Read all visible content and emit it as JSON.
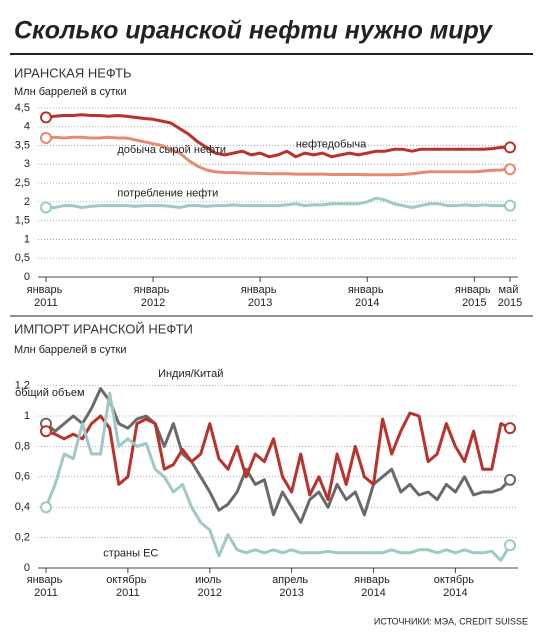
{
  "title": "Сколько иранской нефти нужно миру",
  "source": "ИСТОЧНИКИ: МЭА, CREDIT SUISSE",
  "chart_data": [
    {
      "type": "line",
      "title": "ИРАНСКАЯ НЕФТЬ",
      "y_label": "Млн баррелей в сутки",
      "x": [
        "2011-01",
        "2011-02",
        "2011-03",
        "2011-04",
        "2011-05",
        "2011-06",
        "2011-07",
        "2011-08",
        "2011-09",
        "2011-10",
        "2011-11",
        "2011-12",
        "2012-01",
        "2012-02",
        "2012-03",
        "2012-04",
        "2012-05",
        "2012-06",
        "2012-07",
        "2012-08",
        "2012-09",
        "2012-10",
        "2012-11",
        "2012-12",
        "2013-01",
        "2013-02",
        "2013-03",
        "2013-04",
        "2013-05",
        "2013-06",
        "2013-07",
        "2013-08",
        "2013-09",
        "2013-10",
        "2013-11",
        "2013-12",
        "2014-01",
        "2014-02",
        "2014-03",
        "2014-04",
        "2014-05",
        "2014-06",
        "2014-07",
        "2014-08",
        "2014-09",
        "2014-10",
        "2014-11",
        "2014-12",
        "2015-01",
        "2015-02",
        "2015-03",
        "2015-04",
        "2015-05"
      ],
      "xticks": [
        {
          "value": "2011-01",
          "label": "январь 2011"
        },
        {
          "value": "2012-01",
          "label": "январь 2012"
        },
        {
          "value": "2013-01",
          "label": "январь 2013"
        },
        {
          "value": "2014-01",
          "label": "январь 2014"
        },
        {
          "value": "2015-01",
          "label": "январь 2015"
        },
        {
          "value": "2015-05",
          "label": "май 2015"
        }
      ],
      "ylim": [
        0,
        4.5
      ],
      "yticks": [
        0,
        {
          "value": 0.5,
          "label": "0,5"
        },
        1,
        {
          "value": 1.5,
          "label": "1,5"
        },
        2,
        {
          "value": 2.5,
          "label": "2,5"
        },
        3,
        {
          "value": 3.5,
          "label": "3,5"
        },
        4,
        {
          "value": 4.5,
          "label": "4,5"
        }
      ],
      "grid": true,
      "series": [
        {
          "name": "нефтедобыча",
          "color": "#b8332c",
          "values": [
            4.25,
            4.28,
            4.3,
            4.3,
            4.32,
            4.3,
            4.3,
            4.28,
            4.3,
            4.28,
            4.25,
            4.22,
            4.2,
            4.15,
            4.1,
            3.95,
            3.8,
            3.6,
            3.45,
            3.3,
            3.25,
            3.3,
            3.35,
            3.25,
            3.3,
            3.2,
            3.25,
            3.35,
            3.2,
            3.3,
            3.25,
            3.3,
            3.2,
            3.25,
            3.3,
            3.25,
            3.3,
            3.35,
            3.35,
            3.4,
            3.4,
            3.35,
            3.4,
            3.4,
            3.4,
            3.4,
            3.4,
            3.4,
            3.4,
            3.4,
            3.42,
            3.45,
            3.45
          ]
        },
        {
          "name": "добыча сырой нефти",
          "color": "#e48b74",
          "values": [
            3.7,
            3.72,
            3.7,
            3.72,
            3.72,
            3.7,
            3.7,
            3.72,
            3.7,
            3.7,
            3.65,
            3.6,
            3.55,
            3.5,
            3.4,
            3.3,
            3.1,
            2.95,
            2.85,
            2.8,
            2.78,
            2.78,
            2.77,
            2.76,
            2.76,
            2.75,
            2.75,
            2.75,
            2.74,
            2.74,
            2.74,
            2.74,
            2.73,
            2.73,
            2.73,
            2.73,
            2.72,
            2.72,
            2.72,
            2.72,
            2.73,
            2.75,
            2.78,
            2.8,
            2.8,
            2.8,
            2.8,
            2.8,
            2.8,
            2.82,
            2.84,
            2.85,
            2.87
          ]
        },
        {
          "name": "потребление нефти",
          "color": "#9fc9c6",
          "values": [
            1.85,
            1.85,
            1.9,
            1.9,
            1.85,
            1.88,
            1.9,
            1.9,
            1.9,
            1.9,
            1.88,
            1.9,
            1.9,
            1.9,
            1.88,
            1.85,
            1.9,
            1.9,
            1.88,
            1.9,
            1.9,
            1.92,
            1.9,
            1.9,
            1.9,
            1.9,
            1.9,
            1.92,
            1.95,
            1.9,
            1.92,
            1.92,
            1.95,
            1.95,
            1.95,
            1.95,
            2.0,
            2.1,
            2.05,
            1.95,
            1.9,
            1.85,
            1.9,
            1.95,
            1.95,
            1.9,
            1.9,
            1.92,
            1.9,
            1.92,
            1.9,
            1.9,
            1.9
          ]
        }
      ]
    },
    {
      "type": "line",
      "title": "ИМПОРТ ИРАНСКОЙ НЕФТИ",
      "y_label": "Млн баррелей в сутки",
      "x": [
        "2011-01",
        "2011-02",
        "2011-03",
        "2011-04",
        "2011-05",
        "2011-06",
        "2011-07",
        "2011-08",
        "2011-09",
        "2011-10",
        "2011-11",
        "2011-12",
        "2012-01",
        "2012-02",
        "2012-03",
        "2012-04",
        "2012-05",
        "2012-06",
        "2012-07",
        "2012-08",
        "2012-09",
        "2012-10",
        "2012-11",
        "2012-12",
        "2013-01",
        "2013-02",
        "2013-03",
        "2013-04",
        "2013-05",
        "2013-06",
        "2013-07",
        "2013-08",
        "2013-09",
        "2013-10",
        "2013-11",
        "2013-12",
        "2014-01",
        "2014-02",
        "2014-03",
        "2014-04",
        "2014-05",
        "2014-06",
        "2014-07",
        "2014-08",
        "2014-09",
        "2014-10",
        "2014-11",
        "2014-12",
        "2015-01",
        "2015-02",
        "2015-03",
        "2015-04"
      ],
      "xticks": [
        {
          "value": "2011-01",
          "label": "январь 2011"
        },
        {
          "value": "2011-10",
          "label": "октябрь 2011"
        },
        {
          "value": "2012-07",
          "label": "июль 2012"
        },
        {
          "value": "2013-04",
          "label": "апрель 2013"
        },
        {
          "value": "2014-01",
          "label": "январь 2014"
        },
        {
          "value": "2014-10",
          "label": "октябрь 2014"
        }
      ],
      "ylim": [
        0,
        1.25
      ],
      "yticks": [
        0,
        {
          "value": 0.2,
          "label": "0,2"
        },
        {
          "value": 0.4,
          "label": "0,4"
        },
        {
          "value": 0.6,
          "label": "0,6"
        },
        {
          "value": 0.8,
          "label": "0,8"
        },
        1,
        {
          "value": 1.2,
          "label": "1,2"
        }
      ],
      "grid": true,
      "series": [
        {
          "name": "общий объем",
          "color": "#6a6a6a",
          "values": [
            0.95,
            0.9,
            0.95,
            1.0,
            0.95,
            1.05,
            1.18,
            1.1,
            0.95,
            0.92,
            0.98,
            1.0,
            0.95,
            0.8,
            0.95,
            0.75,
            0.7,
            0.6,
            0.5,
            0.38,
            0.42,
            0.5,
            0.65,
            0.55,
            0.58,
            0.35,
            0.5,
            0.4,
            0.3,
            0.45,
            0.5,
            0.4,
            0.55,
            0.45,
            0.5,
            0.35,
            0.55,
            0.6,
            0.65,
            0.5,
            0.55,
            0.48,
            0.5,
            0.45,
            0.55,
            0.5,
            0.6,
            0.48,
            0.5,
            0.5,
            0.52,
            0.58
          ]
        },
        {
          "name": "Индия/Китай",
          "color": "#b8332c",
          "values": [
            0.9,
            0.88,
            0.85,
            0.88,
            0.85,
            0.95,
            1.0,
            0.92,
            0.55,
            0.6,
            0.95,
            0.98,
            0.95,
            0.65,
            0.68,
            0.78,
            0.7,
            0.75,
            0.95,
            0.72,
            0.65,
            0.8,
            0.6,
            0.75,
            0.7,
            0.85,
            0.6,
            0.5,
            0.75,
            0.48,
            0.6,
            0.45,
            0.75,
            0.55,
            0.8,
            0.6,
            0.55,
            0.98,
            0.75,
            0.9,
            1.02,
            1.0,
            0.7,
            0.75,
            0.95,
            0.8,
            0.7,
            0.9,
            0.65,
            0.65,
            0.95,
            0.92
          ]
        },
        {
          "name": "страны ЕС",
          "color": "#9fc9c6",
          "values": [
            0.4,
            0.55,
            0.75,
            0.72,
            0.95,
            0.75,
            0.75,
            1.15,
            0.8,
            0.85,
            0.8,
            0.82,
            0.65,
            0.6,
            0.5,
            0.55,
            0.4,
            0.3,
            0.25,
            0.08,
            0.22,
            0.12,
            0.1,
            0.12,
            0.1,
            0.12,
            0.1,
            0.12,
            0.1,
            0.1,
            0.1,
            0.11,
            0.1,
            0.1,
            0.1,
            0.1,
            0.1,
            0.1,
            0.12,
            0.1,
            0.1,
            0.12,
            0.12,
            0.1,
            0.12,
            0.1,
            0.12,
            0.1,
            0.1,
            0.11,
            0.05,
            0.15
          ]
        }
      ]
    }
  ]
}
